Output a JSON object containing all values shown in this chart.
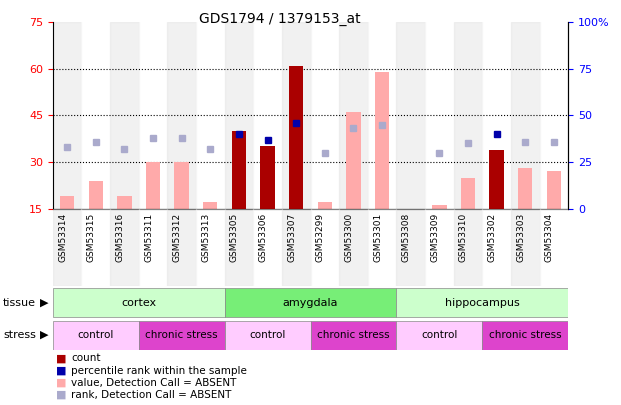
{
  "title": "GDS1794 / 1379153_at",
  "samples": [
    "GSM53314",
    "GSM53315",
    "GSM53316",
    "GSM53311",
    "GSM53312",
    "GSM53313",
    "GSM53305",
    "GSM53306",
    "GSM53307",
    "GSM53299",
    "GSM53300",
    "GSM53301",
    "GSM53308",
    "GSM53309",
    "GSM53310",
    "GSM53302",
    "GSM53303",
    "GSM53304"
  ],
  "count_values": [
    null,
    null,
    null,
    null,
    null,
    null,
    40,
    35,
    61,
    null,
    null,
    null,
    null,
    null,
    null,
    34,
    null,
    null
  ],
  "percentile_values": [
    null,
    null,
    null,
    null,
    null,
    null,
    40,
    37,
    46,
    null,
    null,
    null,
    null,
    null,
    null,
    40,
    null,
    null
  ],
  "absent_value": [
    19,
    24,
    19,
    30,
    30,
    17,
    null,
    null,
    null,
    17,
    46,
    59,
    null,
    16,
    25,
    null,
    28,
    27
  ],
  "absent_rank": [
    33,
    36,
    32,
    38,
    38,
    32,
    null,
    null,
    null,
    30,
    43,
    45,
    null,
    30,
    35,
    null,
    36,
    36
  ],
  "tissue_groups": [
    {
      "label": "cortex",
      "start": 0,
      "end": 6,
      "color": "#ccffcc"
    },
    {
      "label": "amygdala",
      "start": 6,
      "end": 12,
      "color": "#77ee77"
    },
    {
      "label": "hippocampus",
      "start": 12,
      "end": 18,
      "color": "#ccffcc"
    }
  ],
  "stress_groups": [
    {
      "label": "control",
      "start": 0,
      "end": 3,
      "color": "#ffccff"
    },
    {
      "label": "chronic stress",
      "start": 3,
      "end": 6,
      "color": "#dd44cc"
    },
    {
      "label": "control",
      "start": 6,
      "end": 9,
      "color": "#ffccff"
    },
    {
      "label": "chronic stress",
      "start": 9,
      "end": 12,
      "color": "#dd44cc"
    },
    {
      "label": "control",
      "start": 12,
      "end": 15,
      "color": "#ffccff"
    },
    {
      "label": "chronic stress",
      "start": 15,
      "end": 18,
      "color": "#dd44cc"
    }
  ],
  "left_ylim": [
    15,
    75
  ],
  "right_ylim": [
    0,
    100
  ],
  "left_yticks": [
    15,
    30,
    45,
    60,
    75
  ],
  "right_yticks": [
    0,
    25,
    50,
    75,
    100
  ],
  "bar_color_count": "#aa0000",
  "bar_color_absent_value": "#ffaaaa",
  "bar_color_absent_rank": "#aaaacc",
  "dot_color_percentile": "#0000aa",
  "dotted_values": [
    30,
    45,
    60
  ],
  "col_bg_even": "#dddddd",
  "col_bg_odd": "#ffffff"
}
